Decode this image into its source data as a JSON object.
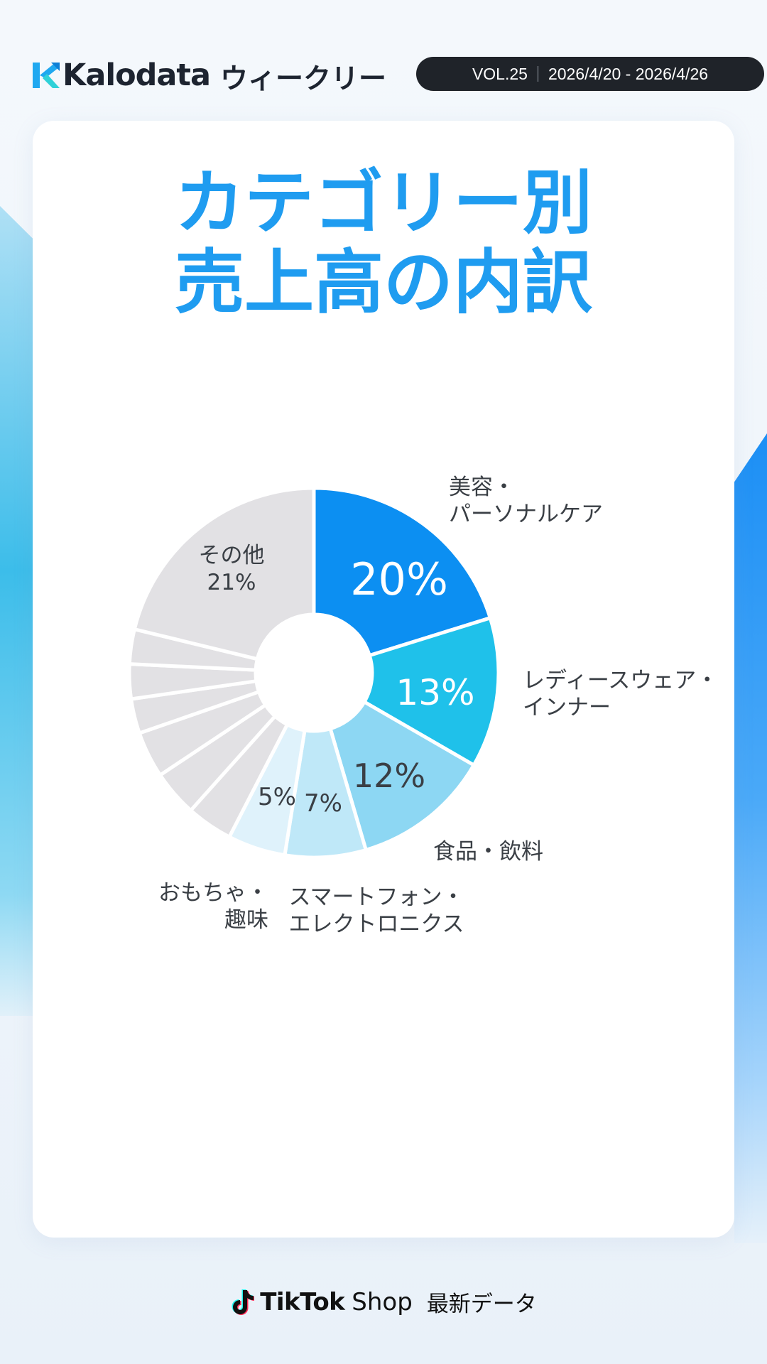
{
  "header": {
    "brand": "Kalodata",
    "weekly": "ウィークリー",
    "volume": "VOL.25",
    "date_range": "2026/4/20 - 2026/4/26"
  },
  "title_lines": [
    "カテゴリー別",
    "売上高の内訳"
  ],
  "chart_data": {
    "type": "pie",
    "title": "カテゴリー別 売上高の内訳",
    "donut": true,
    "slices": [
      {
        "label": [
          "美容・",
          "パーソナルケア"
        ],
        "value": 20,
        "value_label": "20%",
        "color": "#0c8ff2",
        "label_color": "#ffffff"
      },
      {
        "label": [
          "レディースウェア・",
          "インナー"
        ],
        "value": 13,
        "value_label": "13%",
        "color": "#1fc1ea",
        "label_color": "#ffffff"
      },
      {
        "label": [
          "食品・飲料"
        ],
        "value": 12,
        "value_label": "12%",
        "color": "#8dd7f3",
        "label_color": "#3a3f45"
      },
      {
        "label": [
          "スマートフォン・",
          "エレクトロニクス"
        ],
        "value": 7,
        "value_label": "7%",
        "color": "#bfe8f8",
        "label_color": "#3a3f45"
      },
      {
        "label": [
          "おもちゃ・",
          "趣味"
        ],
        "value": 5,
        "value_label": "5%",
        "color": "#dff2fb",
        "label_color": "#3a3f45"
      },
      {
        "label": [],
        "value": 4,
        "value_label": "",
        "color": "#e2e1e4",
        "label_color": "#3a3f45"
      },
      {
        "label": [],
        "value": 4,
        "value_label": "",
        "color": "#e2e1e4",
        "label_color": "#3a3f45"
      },
      {
        "label": [],
        "value": 4,
        "value_label": "",
        "color": "#e2e1e4",
        "label_color": "#3a3f45"
      },
      {
        "label": [],
        "value": 3,
        "value_label": "",
        "color": "#e2e1e4",
        "label_color": "#3a3f45"
      },
      {
        "label": [],
        "value": 3,
        "value_label": "",
        "color": "#e2e1e4",
        "label_color": "#3a3f45"
      },
      {
        "label": [],
        "value": 3,
        "value_label": "",
        "color": "#e2e1e4",
        "label_color": "#3a3f45"
      },
      {
        "label": [
          "その他"
        ],
        "value": 21,
        "value_label": "21%",
        "color": "#e2e1e4",
        "label_color": "#3a3f45"
      }
    ]
  },
  "footer": {
    "brand": "TikTok",
    "shop": "Shop",
    "latest": "最新データ"
  },
  "colors": {
    "accent": "#1f9cf0",
    "pill_bg": "#1f2329",
    "logo_mark": "#1fa8f0"
  },
  "icons": {
    "logo": "kalodata-logo-icon",
    "footer": "tiktok-icon"
  }
}
